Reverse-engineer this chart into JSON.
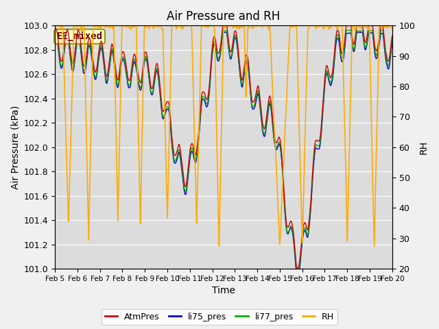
{
  "title": "Air Pressure and RH",
  "xlabel": "Time",
  "ylabel_left": "Air Pressure (kPa)",
  "ylabel_right": "RH",
  "ylim_left": [
    101.0,
    103.0
  ],
  "ylim_right": [
    20,
    100
  ],
  "yticks_left": [
    101.0,
    101.2,
    101.4,
    101.6,
    101.8,
    102.0,
    102.2,
    102.4,
    102.6,
    102.8,
    103.0
  ],
  "yticks_right": [
    20,
    30,
    40,
    50,
    60,
    70,
    80,
    90,
    100
  ],
  "xtick_labels": [
    "Feb 5",
    "Feb 6",
    "Feb 7",
    "Feb 8",
    "Feb 9",
    "Feb 10",
    "Feb 11",
    "Feb 12",
    "Feb 13",
    "Feb 14",
    "Feb 15",
    "Feb 16",
    "Feb 17",
    "Feb 18",
    "Feb 19",
    "Feb 20"
  ],
  "colors": {
    "AtmPres": "#cc0000",
    "li75_pres": "#0000cc",
    "li77_pres": "#00aa00",
    "RH": "#ffaa00",
    "plot_bg": "#dcdcdc"
  },
  "annotation_text": "EE_mixed",
  "annotation_fontsize": 10,
  "title_fontsize": 12
}
